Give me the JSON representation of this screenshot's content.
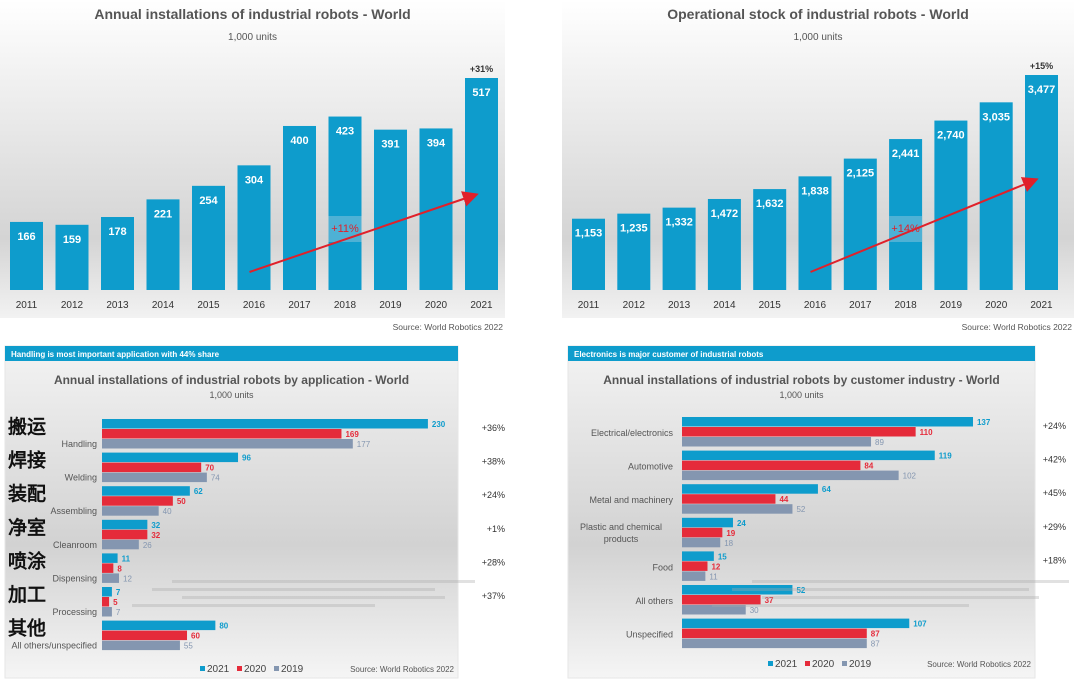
{
  "colors": {
    "c2021": "#0e9ccc",
    "c2020": "#e52b3a",
    "c2019": "#8496b0",
    "arrow": "#e0202a",
    "banner": "#0e9ccc"
  },
  "chart_data": [
    {
      "type": "bar",
      "title": "Annual installations of industrial robots - World",
      "subtitle": "1,000 units",
      "categories": [
        "2011",
        "2012",
        "2013",
        "2014",
        "2015",
        "2016",
        "2017",
        "2018",
        "2019",
        "2020",
        "2021"
      ],
      "values": [
        166,
        159,
        178,
        221,
        254,
        304,
        400,
        423,
        391,
        394,
        517
      ],
      "value_labels": [
        "166",
        "159",
        "178",
        "221",
        "254",
        "304",
        "400",
        "423",
        "391",
        "394",
        "517"
      ],
      "annotations": {
        "last_growth": "+31%",
        "trend_cagr": "+11%"
      },
      "source": "Source: World Robotics 2022",
      "ylim": [
        0,
        540
      ]
    },
    {
      "type": "bar",
      "title": "Operational stock of industrial robots - World",
      "subtitle": "1,000 units",
      "categories": [
        "2011",
        "2012",
        "2013",
        "2014",
        "2015",
        "2016",
        "2017",
        "2018",
        "2019",
        "2020",
        "2021"
      ],
      "values": [
        1153,
        1235,
        1332,
        1472,
        1632,
        1838,
        2125,
        2441,
        2740,
        3035,
        3477
      ],
      "value_labels": [
        "1,153",
        "1,235",
        "1,332",
        "1,472",
        "1,632",
        "1,838",
        "2,125",
        "2,441",
        "2,740",
        "3,035",
        "3,477"
      ],
      "annotations": {
        "last_growth": "+15%",
        "trend_cagr": "+14%"
      },
      "source": "Source: World Robotics 2022",
      "ylim": [
        0,
        3650
      ]
    },
    {
      "type": "bar",
      "orientation": "horizontal",
      "banner": "Handling is most important application with 44% share",
      "title": "Annual installations of industrial robots by application - World",
      "subtitle": "1,000 units",
      "categories": [
        "Handling",
        "Welding",
        "Assembling",
        "Cleanroom",
        "Dispensing",
        "Processing",
        "All others/unspecified"
      ],
      "overlay_labels": [
        "搬运",
        "焊接",
        "装配",
        "净室",
        "喷涂",
        "加工",
        "其他"
      ],
      "series": [
        {
          "name": "2021",
          "values": [
            230,
            96,
            62,
            32,
            11,
            7,
            80
          ]
        },
        {
          "name": "2020",
          "values": [
            169,
            70,
            50,
            32,
            8,
            5,
            60
          ]
        },
        {
          "name": "2019",
          "values": [
            177,
            74,
            40,
            26,
            12,
            7,
            55
          ]
        }
      ],
      "growth": [
        "+36%",
        "+38%",
        "+24%",
        "+1%",
        "+28%",
        "+37%",
        ""
      ],
      "legend": "bottom",
      "source": "Source: World Robotics 2022"
    },
    {
      "type": "bar",
      "orientation": "horizontal",
      "banner": "Electronics is major customer of industrial robots",
      "title": "Annual installations of industrial robots by customer industry - World",
      "subtitle": "1,000 units",
      "categories": [
        "Electrical/electronics",
        "Automotive",
        "Metal and machinery",
        "Plastic and chemical products",
        "Food",
        "All others",
        "Unspecified"
      ],
      "series": [
        {
          "name": "2021",
          "values": [
            137,
            119,
            64,
            24,
            15,
            52,
            107
          ]
        },
        {
          "name": "2020",
          "values": [
            110,
            84,
            44,
            19,
            12,
            37,
            87
          ]
        },
        {
          "name": "2019",
          "values": [
            89,
            102,
            52,
            18,
            11,
            30,
            87
          ]
        }
      ],
      "growth": [
        "+24%",
        "+42%",
        "+45%",
        "+29%",
        "+18%",
        "",
        ""
      ],
      "legend": "bottom",
      "source": "Source: World Robotics 2022"
    }
  ]
}
